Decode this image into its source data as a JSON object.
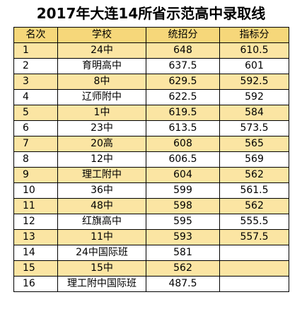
{
  "title": "2017年大连14所省示范高中录取线",
  "colors": {
    "header_fill": "#f6d77a",
    "band_fill": "#fbe5a3",
    "plain_fill": "#ffffff",
    "border": "#000000"
  },
  "table": {
    "headers": [
      "名次",
      "学校",
      "统招分",
      "指标分"
    ],
    "rows": [
      {
        "rank": "1",
        "school": "24中",
        "tongzhao": "648",
        "zhibiao": "610.5"
      },
      {
        "rank": "2",
        "school": "育明高中",
        "tongzhao": "637.5",
        "zhibiao": "601"
      },
      {
        "rank": "3",
        "school": "8中",
        "tongzhao": "629.5",
        "zhibiao": "592.5"
      },
      {
        "rank": "4",
        "school": "辽师附中",
        "tongzhao": "622.5",
        "zhibiao": "592"
      },
      {
        "rank": "5",
        "school": "1中",
        "tongzhao": "619.5",
        "zhibiao": "584"
      },
      {
        "rank": "6",
        "school": "23中",
        "tongzhao": "613.5",
        "zhibiao": "573.5"
      },
      {
        "rank": "7",
        "school": "20高",
        "tongzhao": "608",
        "zhibiao": "565"
      },
      {
        "rank": "8",
        "school": "12中",
        "tongzhao": "606.5",
        "zhibiao": "569"
      },
      {
        "rank": "9",
        "school": "理工附中",
        "tongzhao": "604",
        "zhibiao": "562"
      },
      {
        "rank": "10",
        "school": "36中",
        "tongzhao": "599",
        "zhibiao": "561.5"
      },
      {
        "rank": "11",
        "school": "48中",
        "tongzhao": "598",
        "zhibiao": "562"
      },
      {
        "rank": "12",
        "school": "红旗高中",
        "tongzhao": "595",
        "zhibiao": "555.5"
      },
      {
        "rank": "13",
        "school": "11中",
        "tongzhao": "593",
        "zhibiao": "557.5"
      },
      {
        "rank": "14",
        "school": "24中国际班",
        "tongzhao": "581",
        "zhibiao": ""
      },
      {
        "rank": "15",
        "school": "15中",
        "tongzhao": "562",
        "zhibiao": ""
      },
      {
        "rank": "16",
        "school": "理工附中国际班",
        "tongzhao": "487.5",
        "zhibiao": ""
      }
    ]
  }
}
